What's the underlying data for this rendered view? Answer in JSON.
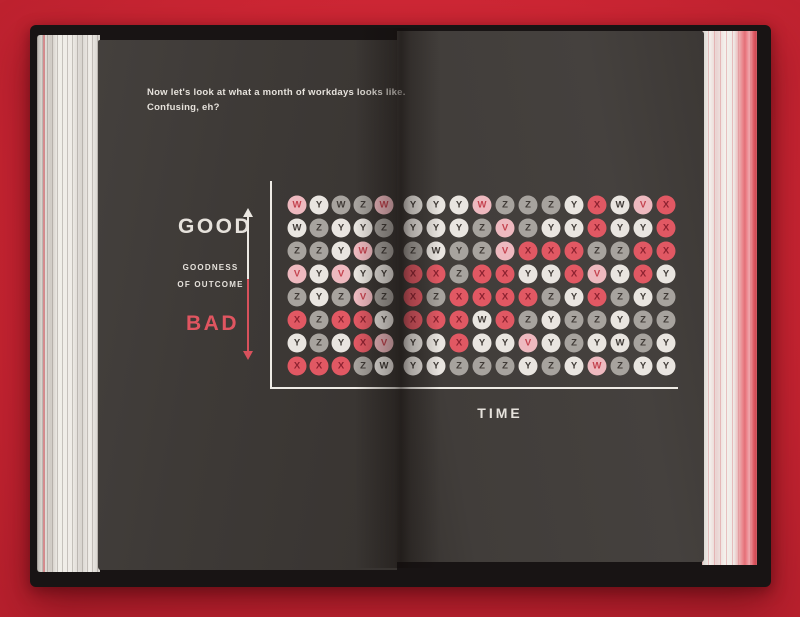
{
  "colors": {
    "background": "#cd2634",
    "cover": "#181414",
    "page_left": "#3e3a37",
    "page_right": "#413d3a",
    "page_edge": "#ece9e4",
    "axis": "#efece6",
    "text": "#e6e2dc",
    "accent_red": "#e05560",
    "circle_white": "#e9e5e0",
    "circle_gray": "#a7a39e",
    "circle_red": "#e15863",
    "circle_pink": "#eeb9bf",
    "letter_dark": "#403b37",
    "letter_on_red": "#8c2230",
    "letter_on_pink": "#c4434f"
  },
  "page_text": {
    "intro_line1": "Now let's look at what a month of workdays looks like.",
    "intro_line2": "Confusing, eh?"
  },
  "axis_labels": {
    "good": "GOOD",
    "ylabel_line1": "GOODNESS",
    "ylabel_line2": "OF OUTCOME",
    "bad": "BAD",
    "time": "TIME"
  },
  "chart_data": {
    "type": "scatter",
    "title": "Now let's look at what a month of workdays looks like. Confusing, eh?",
    "xlabel": "TIME",
    "ylabel": "GOODNESS OF OUTCOME",
    "y_axis_top": "GOOD",
    "y_axis_bottom": "BAD",
    "grid": false,
    "rows": 8,
    "cols": 17,
    "point_format": "LETTER:color (letter printed in circle, circle fill color)",
    "points": [
      [
        "W:pink",
        "Y:white",
        "W:gray",
        "Z:gray",
        "W:pink",
        "Y:white",
        "Y:white",
        "Y:white",
        "W:pink",
        "Z:gray",
        "Z:gray",
        "Z:gray",
        "Y:white",
        "X:red",
        "W:white",
        "V:pink",
        "X:red"
      ],
      [
        "W:white",
        "Z:gray",
        "Y:white",
        "Y:white",
        "Z:gray",
        "Y:white",
        "Y:white",
        "Y:white",
        "Z:gray",
        "V:pink",
        "Z:gray",
        "Y:white",
        "Y:white",
        "X:red",
        "Y:white",
        "Y:white",
        "X:red"
      ],
      [
        "Z:gray",
        "Z:gray",
        "Y:white",
        "W:pink",
        "Z:gray",
        "Z:gray",
        "W:white",
        "Y:gray",
        "Z:gray",
        "V:pink",
        "X:red",
        "X:red",
        "X:red",
        "Z:gray",
        "Z:gray",
        "X:red",
        "X:red"
      ],
      [
        "V:pink",
        "Y:white",
        "V:pink",
        "Y:white",
        "Y:white",
        "X:red",
        "X:red",
        "Z:gray",
        "X:red",
        "X:red",
        "Y:white",
        "Y:white",
        "X:red",
        "V:pink",
        "Y:white",
        "X:red",
        "Y:white"
      ],
      [
        "Z:gray",
        "Y:white",
        "Z:gray",
        "V:pink",
        "Z:gray",
        "X:red",
        "Z:gray",
        "X:red",
        "X:red",
        "X:red",
        "X:red",
        "Z:gray",
        "Y:white",
        "X:red",
        "Z:gray",
        "Y:white",
        "Z:gray"
      ],
      [
        "X:red",
        "Z:gray",
        "X:red",
        "X:red",
        "Y:white",
        "X:red",
        "X:red",
        "X:red",
        "W:white",
        "X:red",
        "Z:gray",
        "Y:white",
        "Z:gray",
        "Z:gray",
        "Y:white",
        "Z:gray",
        "Z:gray"
      ],
      [
        "Y:white",
        "Z:gray",
        "Y:white",
        "X:red",
        "V:pink",
        "Y:white",
        "Y:white",
        "X:red",
        "Y:white",
        "Y:white",
        "V:pink",
        "Y:white",
        "Z:gray",
        "Y:white",
        "W:white",
        "Z:gray",
        "Y:white"
      ],
      [
        "X:red",
        "X:red",
        "X:red",
        "Z:gray",
        "W:white",
        "Y:white",
        "Y:white",
        "Z:gray",
        "Z:gray",
        "Z:gray",
        "Y:white",
        "Z:gray",
        "Y:white",
        "W:pink",
        "Z:gray",
        "Y:white",
        "Y:white"
      ]
    ]
  }
}
